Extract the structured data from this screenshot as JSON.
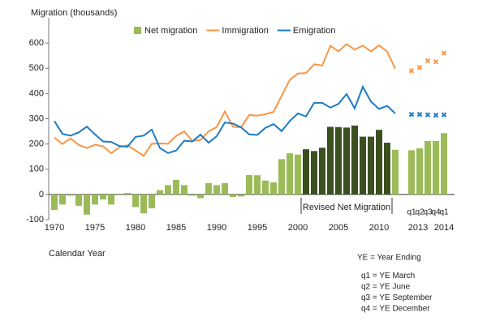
{
  "chart_data": {
    "type": "combo",
    "y_label": "Migration (thousands)",
    "x_label": "Calendar Year",
    "categories": [
      "1970",
      null,
      null,
      null,
      null,
      "1975",
      null,
      null,
      null,
      null,
      "1980",
      null,
      null,
      null,
      null,
      "1985",
      null,
      null,
      null,
      null,
      "1990",
      null,
      null,
      null,
      null,
      "1995",
      null,
      null,
      null,
      null,
      "2000",
      null,
      null,
      null,
      null,
      "2005",
      null,
      null,
      null,
      null,
      "2010",
      null,
      null,
      null,
      "q1",
      "q2",
      "q3",
      "q4",
      "q1"
    ],
    "year_labels": [
      "2013",
      "2014"
    ],
    "ylim": [
      -100,
      700
    ],
    "yticks": [
      -100,
      0,
      100,
      200,
      300,
      400,
      500,
      600
    ],
    "series": [
      {
        "name": "Net migration",
        "kind": "bar",
        "color": "#9bbb59",
        "legend": true,
        "values": [
          -62,
          -40,
          -5,
          -45,
          -80,
          -40,
          -20,
          -40,
          -3,
          6,
          -50,
          -75,
          -55,
          17,
          37,
          58,
          37,
          -5,
          -15,
          45,
          37,
          45,
          -10,
          -8,
          77,
          76,
          55,
          48,
          140,
          163,
          158,
          null,
          null,
          null,
          null,
          null,
          null,
          null,
          null,
          null,
          null,
          null,
          177,
          null,
          175,
          183,
          212,
          212,
          243
        ]
      },
      {
        "name": "Revised Net Migration",
        "kind": "bar",
        "color": "#3b4f1f",
        "legend": false,
        "values": [
          null,
          null,
          null,
          null,
          null,
          null,
          null,
          null,
          null,
          null,
          null,
          null,
          null,
          null,
          null,
          null,
          null,
          null,
          null,
          null,
          null,
          null,
          null,
          null,
          null,
          null,
          null,
          null,
          null,
          null,
          null,
          179,
          172,
          185,
          268,
          267,
          265,
          273,
          229,
          229,
          256,
          205,
          null,
          null,
          null,
          null,
          null,
          null,
          null
        ]
      },
      {
        "name": "Immigration",
        "kind": "line",
        "color": "#f79646",
        "legend": true,
        "values": [
          225,
          200,
          222,
          196,
          184,
          197,
          191,
          163,
          187,
          195,
          174,
          153,
          201,
          202,
          201,
          232,
          250,
          212,
          216,
          250,
          267,
          329,
          268,
          266,
          315,
          312,
          318,
          327,
          391,
          454,
          479,
          481,
          516,
          511,
          589,
          567,
          596,
          574,
          590,
          567,
          591,
          566,
          498,
          null,
          null,
          null,
          null,
          null,
          null
        ]
      },
      {
        "name": "Emigration",
        "kind": "line",
        "color": "#1b7cc4",
        "legend": true,
        "values": [
          291,
          240,
          233,
          246,
          269,
          238,
          210,
          208,
          192,
          189,
          228,
          233,
          257,
          184,
          164,
          174,
          213,
          210,
          237,
          205,
          231,
          285,
          281,
          266,
          238,
          236,
          264,
          279,
          251,
          291,
          321,
          309,
          363,
          363,
          344,
          359,
          398,
          341,
          427,
          368,
          339,
          351,
          321,
          null,
          null,
          null,
          null,
          null,
          null
        ]
      },
      {
        "kind": "cross",
        "color": "#f79646",
        "legend": false,
        "values": [
          null,
          null,
          null,
          null,
          null,
          null,
          null,
          null,
          null,
          null,
          null,
          null,
          null,
          null,
          null,
          null,
          null,
          null,
          null,
          null,
          null,
          null,
          null,
          null,
          null,
          null,
          null,
          null,
          null,
          null,
          null,
          null,
          null,
          null,
          null,
          null,
          null,
          null,
          null,
          null,
          null,
          null,
          null,
          null,
          490,
          503,
          530,
          526,
          560
        ]
      },
      {
        "kind": "cross",
        "color": "#1b7cc4",
        "legend": false,
        "values": [
          null,
          null,
          null,
          null,
          null,
          null,
          null,
          null,
          null,
          null,
          null,
          null,
          null,
          null,
          null,
          null,
          null,
          null,
          null,
          null,
          null,
          null,
          null,
          null,
          null,
          null,
          null,
          null,
          null,
          null,
          null,
          null,
          null,
          null,
          null,
          null,
          null,
          null,
          null,
          null,
          null,
          null,
          null,
          null,
          317,
          317,
          316,
          314,
          316
        ]
      }
    ],
    "notes": [
      "YE = Year Ending",
      "q1 = YE March",
      "q2 = YE June",
      "q3 = YE September",
      "q4 = YE December"
    ]
  }
}
